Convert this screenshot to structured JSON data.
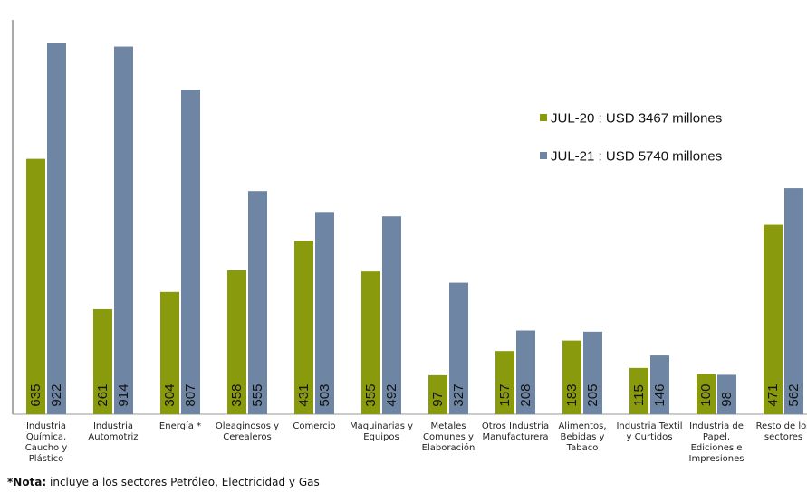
{
  "chart_data": {
    "type": "bar",
    "categories": [
      "Industria Química, Caucho y Plástico",
      "Industria Automotriz",
      "Energía *",
      "Oleaginosos y Cerealeros",
      "Comercio",
      "Maquinarias y Equipos",
      "Metales Comunes y Elaboración",
      "Otros Industria Manufacturera",
      "Alimentos, Bebidas y Tabaco",
      "Industria Textil y Curtidos",
      "Industria de Papel, Ediciones e Impresiones",
      "Resto de los sectores"
    ],
    "category_lines": [
      [
        "Industria",
        "Química,",
        "Caucho y",
        "Plástico"
      ],
      [
        "Industria",
        "Automotriz"
      ],
      [
        "Energía *"
      ],
      [
        "Oleaginosos y",
        "Cerealeros"
      ],
      [
        "Comercio"
      ],
      [
        "Maquinarias y",
        "Equipos"
      ],
      [
        "Metales",
        "Comunes y",
        "Elaboración"
      ],
      [
        "Otros Industria",
        "Manufacturera"
      ],
      [
        "Alimentos,",
        "Bebidas y",
        "Tabaco"
      ],
      [
        "Industria Textil",
        "y Curtidos"
      ],
      [
        "Industria de",
        "Papel,",
        "Ediciones e",
        "Impresiones"
      ],
      [
        "Resto de los",
        "sectores"
      ]
    ],
    "series": [
      {
        "name": "JUL-20 : USD 3467 millones",
        "color": "#8a9a0d",
        "values": [
          635,
          261,
          304,
          358,
          431,
          355,
          97,
          157,
          183,
          115,
          100,
          471
        ]
      },
      {
        "name": "JUL-21 : USD 5740 millones",
        "color": "#6e85a3",
        "values": [
          922,
          914,
          807,
          555,
          503,
          492,
          327,
          208,
          205,
          146,
          98,
          562
        ]
      }
    ],
    "ylim": [
      0,
      1000
    ],
    "legend": "right",
    "grid": false,
    "data_labels": "inside-bottom-rotated"
  },
  "footnote": {
    "bold": "*Nota:",
    "text": " incluye a los sectores Petróleo, Electricidad y Gas"
  }
}
